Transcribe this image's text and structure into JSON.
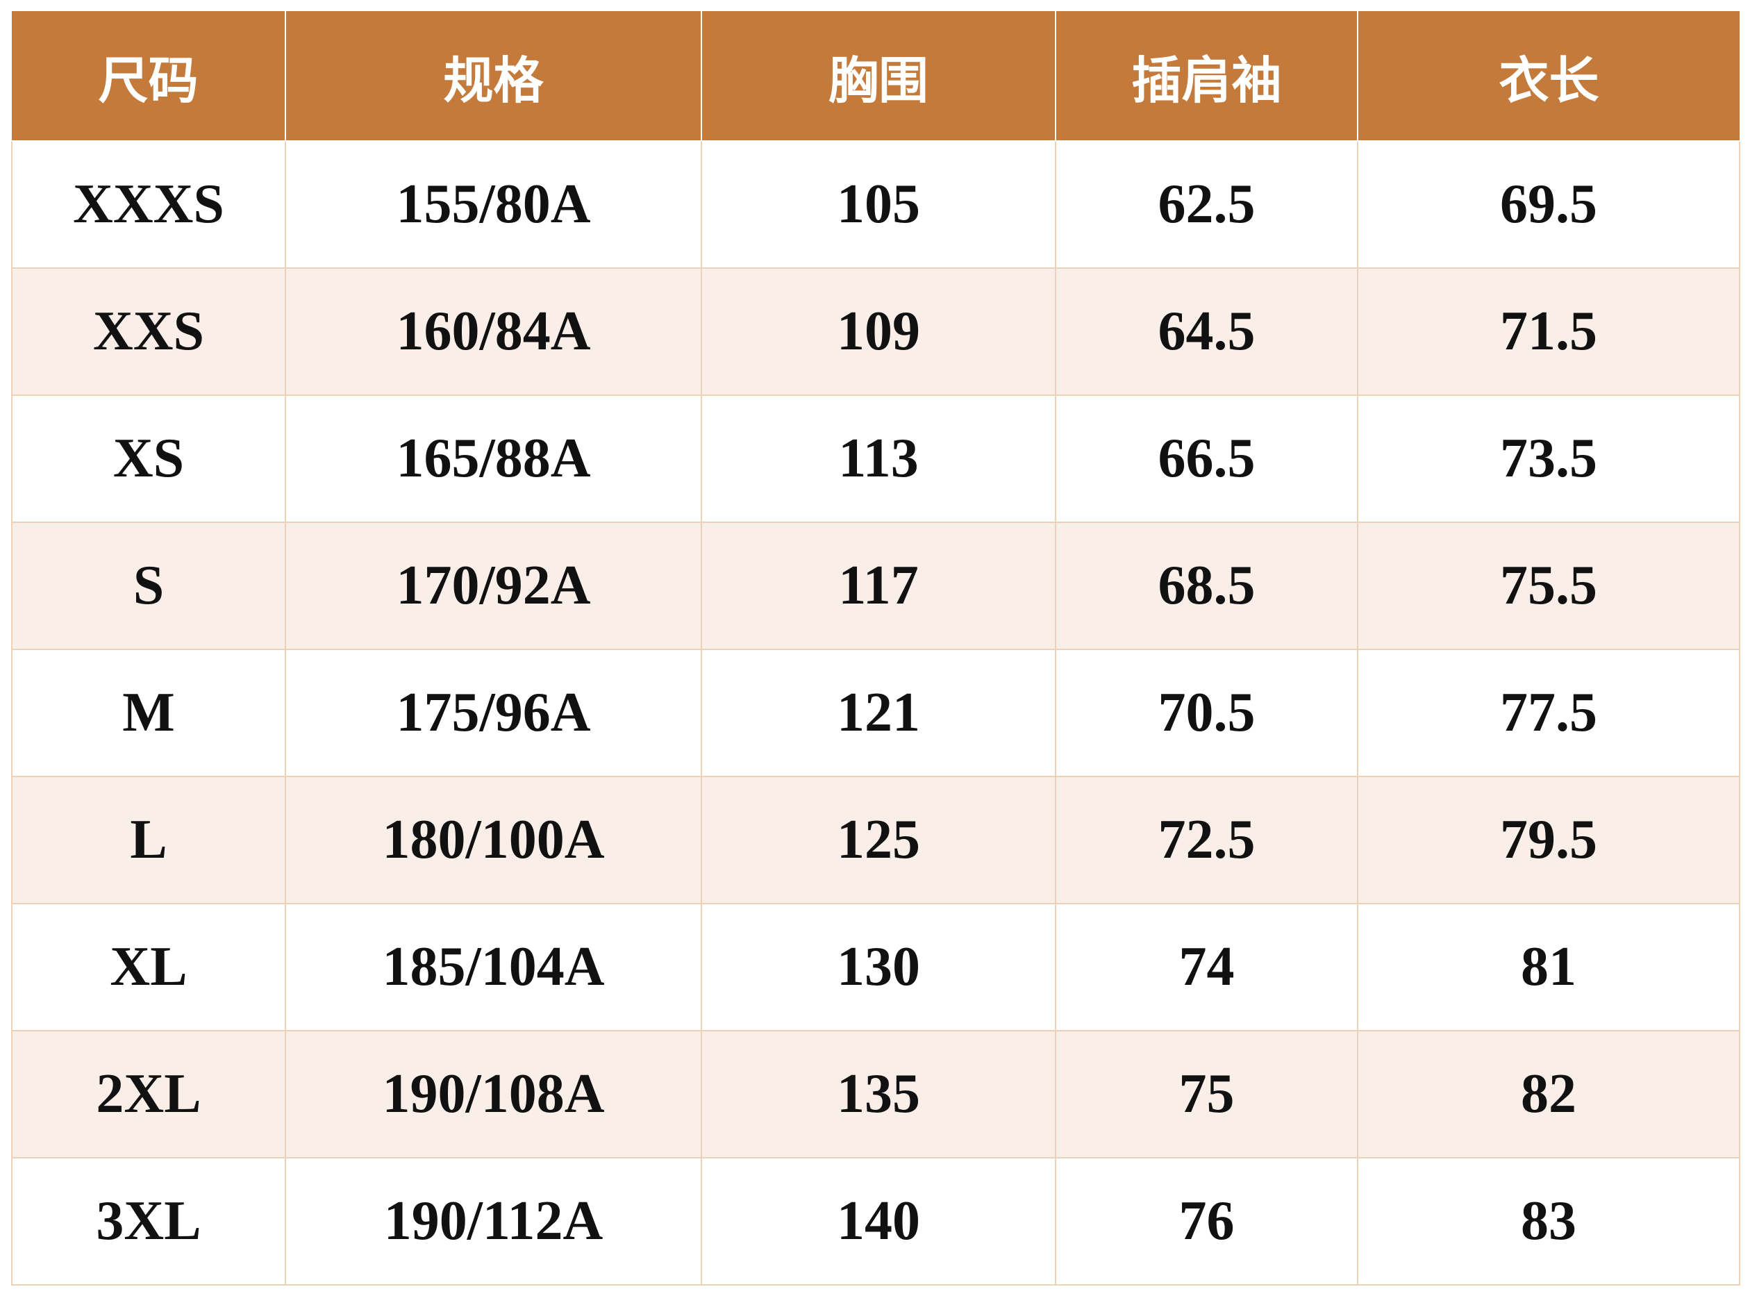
{
  "table": {
    "header": [
      "尺码",
      "规格",
      "胸围",
      "插肩袖",
      "衣长"
    ],
    "rows": [
      [
        "XXXS",
        "155/80A",
        "105",
        "62.5",
        "69.5"
      ],
      [
        "XXS",
        "160/84A",
        "109",
        "64.5",
        "71.5"
      ],
      [
        "XS",
        "165/88A",
        "113",
        "66.5",
        "73.5"
      ],
      [
        "S",
        "170/92A",
        "117",
        "68.5",
        "75.5"
      ],
      [
        "M",
        "175/96A",
        "121",
        "70.5",
        "77.5"
      ],
      [
        "L",
        "180/100A",
        "125",
        "72.5",
        "79.5"
      ],
      [
        "XL",
        "185/104A",
        "130",
        "74",
        "81"
      ],
      [
        "2XL",
        "190/108A",
        "135",
        "75",
        "82"
      ],
      [
        "3XL",
        "190/112A",
        "140",
        "76",
        "83"
      ]
    ]
  }
}
